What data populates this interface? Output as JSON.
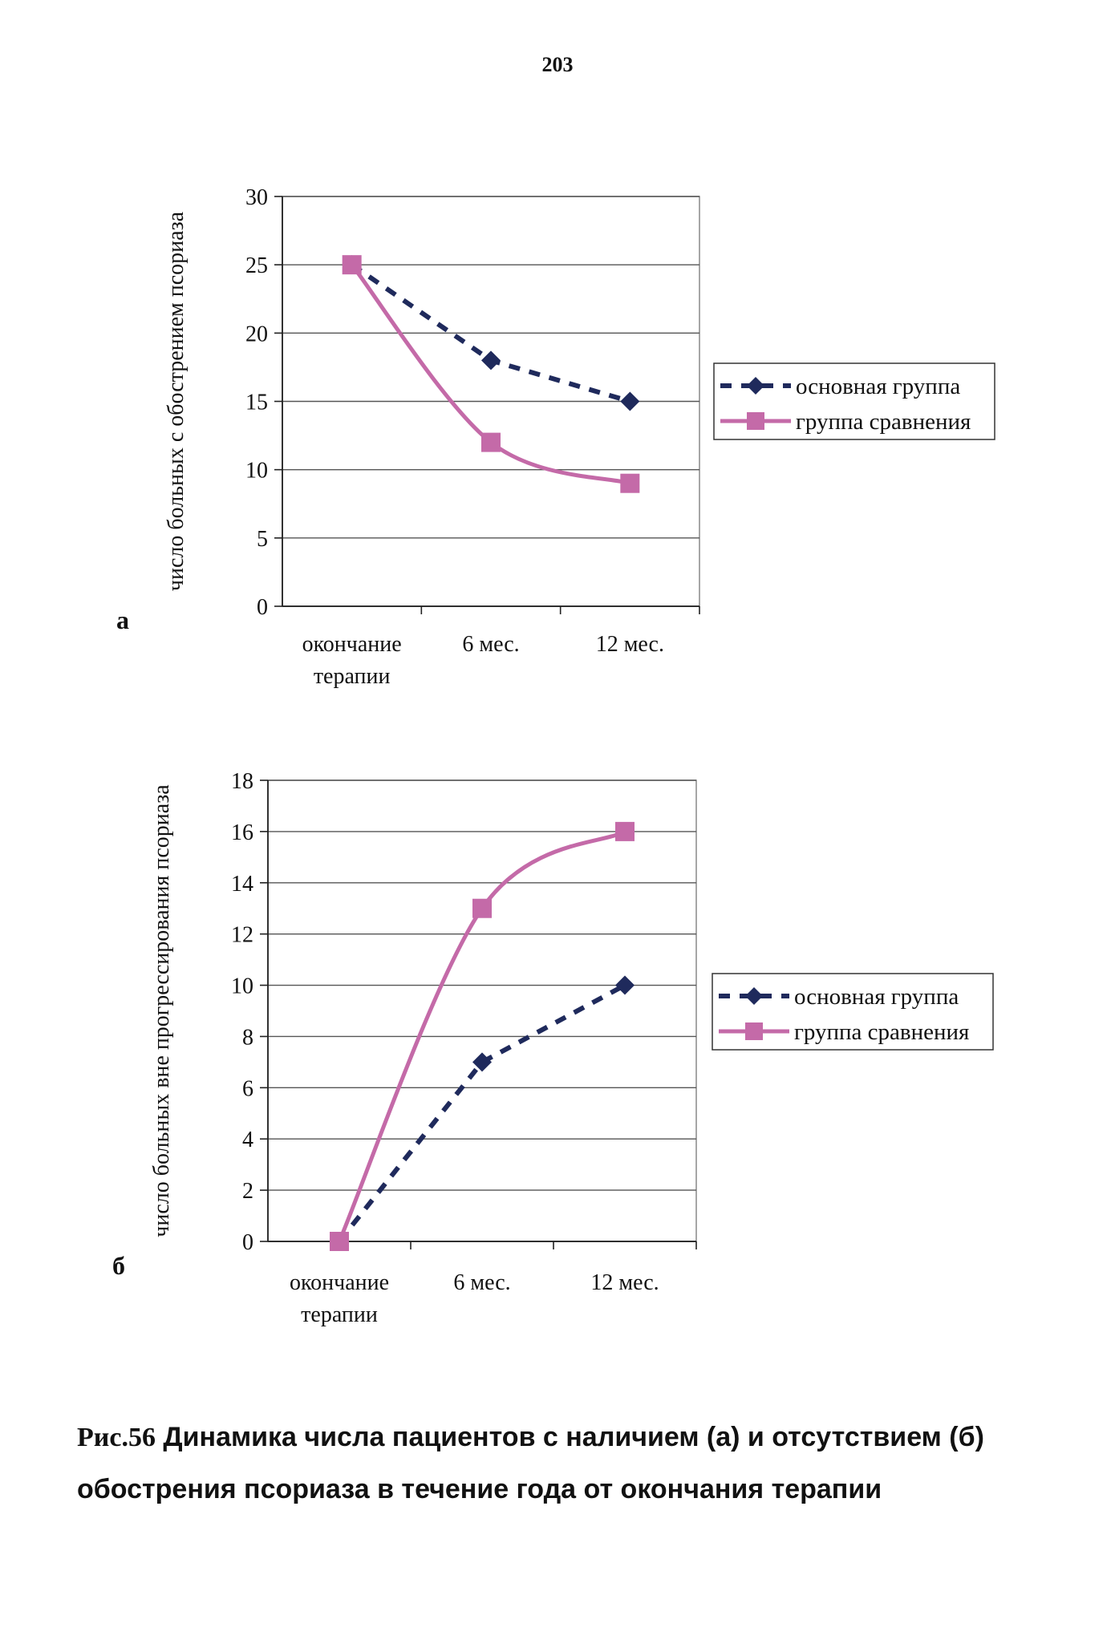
{
  "page": {
    "number": "203"
  },
  "caption": {
    "fig_label": "Рис.56",
    "text": "Динамика числа пациентов с наличием (а) и отсутствием (б) обострения псориаза в течение года от окончания терапии"
  },
  "colors": {
    "series_main": "#1f2a5c",
    "series_compare": "#c46aa8",
    "grid": "#555555"
  },
  "chart_data": [
    {
      "panel_letter": "а",
      "type": "line",
      "title": "",
      "categories": [
        "окончание терапии",
        "6 мес.",
        "12 мес."
      ],
      "category_lines": [
        [
          "окончание",
          "терапии"
        ],
        [
          "6 мес."
        ],
        [
          "12 мес."
        ]
      ],
      "ylabel": "число больных с обострением псориаза",
      "xlabel": "",
      "ylim": [
        0,
        30
      ],
      "yticks": [
        0,
        5,
        10,
        15,
        20,
        25,
        30
      ],
      "grid": true,
      "legend_position": "right",
      "series": [
        {
          "name": "основная группа",
          "values": [
            25,
            18,
            15
          ],
          "style": "dashed",
          "marker": "diamond"
        },
        {
          "name": "группа сравнения",
          "values": [
            25,
            12,
            9
          ],
          "style": "solid-smooth",
          "marker": "square"
        }
      ]
    },
    {
      "panel_letter": "б",
      "type": "line",
      "title": "",
      "categories": [
        "окончание терапии",
        "6 мес.",
        "12 мес."
      ],
      "category_lines": [
        [
          "окончание",
          "терапии"
        ],
        [
          "6 мес."
        ],
        [
          "12 мес."
        ]
      ],
      "ylabel": "число больных вне прогрессирования псориаза",
      "xlabel": "",
      "ylim": [
        0,
        18
      ],
      "yticks": [
        0,
        2,
        4,
        6,
        8,
        10,
        12,
        14,
        16,
        18
      ],
      "grid": true,
      "legend_position": "right",
      "series": [
        {
          "name": "основная группа",
          "values": [
            0,
            7,
            10
          ],
          "style": "dashed",
          "marker": "diamond"
        },
        {
          "name": "группа сравнения",
          "values": [
            0,
            13,
            16
          ],
          "style": "solid-smooth",
          "marker": "square"
        }
      ]
    }
  ]
}
